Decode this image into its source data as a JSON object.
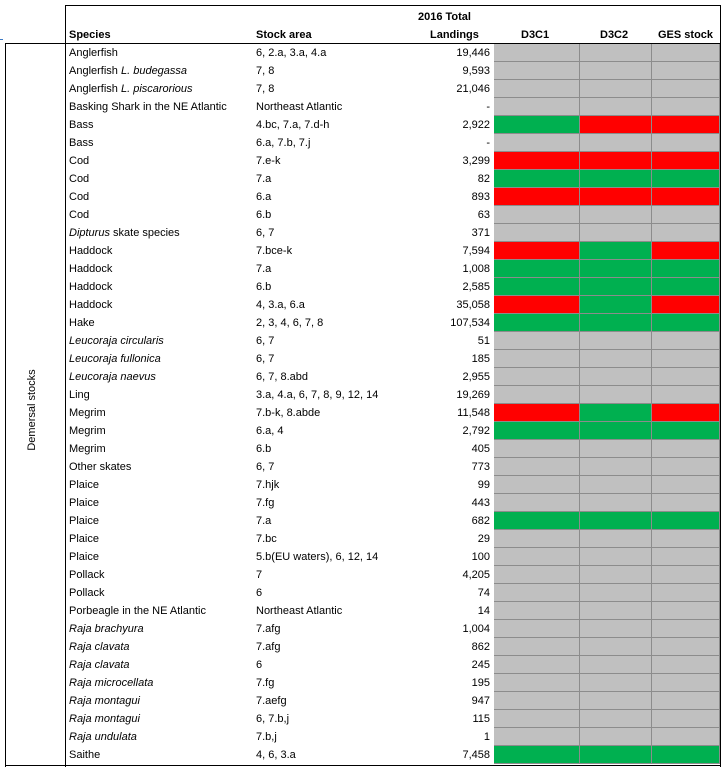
{
  "header": {
    "species": "Species",
    "stock_area": "Stock area",
    "landings_line1": "2016 Total",
    "landings_line2": "Landings",
    "d3c1": "D3C1",
    "d3c2": "D3C2",
    "ges": "GES stock"
  },
  "group_label": "Demersal stocks",
  "colors": {
    "grey": "#c0c0c0",
    "green": "#00b050",
    "red": "#ff0000"
  },
  "rows": [
    {
      "species": "Anglerfish",
      "area": "6, 2.a, 3.a, 4.a",
      "landings": "19,446",
      "d3c1": "grey",
      "d3c2": "grey",
      "ges": "grey"
    },
    {
      "species": "Anglerfish L. budegassa",
      "area": "7, 8",
      "landings": "9,593",
      "d3c1": "grey",
      "d3c2": "grey",
      "ges": "grey"
    },
    {
      "species": "Anglerfish L. piscarorious",
      "area": "7, 8",
      "landings": "21,046",
      "d3c1": "grey",
      "d3c2": "grey",
      "ges": "grey"
    },
    {
      "species": "Basking Shark in the NE Atlantic",
      "area": "Northeast Atlantic",
      "landings": "-",
      "d3c1": "grey",
      "d3c2": "grey",
      "ges": "grey"
    },
    {
      "species": "Bass",
      "area": "4.bc, 7.a, 7.d-h",
      "landings": "2,922",
      "d3c1": "green",
      "d3c2": "red",
      "ges": "red"
    },
    {
      "species": "Bass",
      "area": "6.a, 7.b, 7.j",
      "landings": "-",
      "d3c1": "grey",
      "d3c2": "grey",
      "ges": "grey"
    },
    {
      "species": "Cod",
      "area": "7.e-k",
      "landings": "3,299",
      "d3c1": "red",
      "d3c2": "red",
      "ges": "red"
    },
    {
      "species": "Cod",
      "area": "7.a",
      "landings": "82",
      "d3c1": "green",
      "d3c2": "green",
      "ges": "green"
    },
    {
      "species": "Cod",
      "area": "6.a",
      "landings": "893",
      "d3c1": "red",
      "d3c2": "red",
      "ges": "red"
    },
    {
      "species": "Cod",
      "area": "6.b",
      "landings": "63",
      "d3c1": "grey",
      "d3c2": "grey",
      "ges": "grey"
    },
    {
      "species": "Dipturus skate species",
      "area": "6, 7",
      "landings": "371",
      "d3c1": "grey",
      "d3c2": "grey",
      "ges": "grey"
    },
    {
      "species": "Haddock",
      "area": "7.bce-k",
      "landings": "7,594",
      "d3c1": "red",
      "d3c2": "green",
      "ges": "red"
    },
    {
      "species": "Haddock",
      "area": "7.a",
      "landings": "1,008",
      "d3c1": "green",
      "d3c2": "green",
      "ges": "green"
    },
    {
      "species": "Haddock",
      "area": "6.b",
      "landings": "2,585",
      "d3c1": "green",
      "d3c2": "green",
      "ges": "green"
    },
    {
      "species": "Haddock",
      "area": "4, 3.a, 6.a",
      "landings": "35,058",
      "d3c1": "red",
      "d3c2": "green",
      "ges": "red"
    },
    {
      "species": "Hake",
      "area": "2, 3, 4, 6, 7, 8",
      "landings": "107,534",
      "d3c1": "green",
      "d3c2": "green",
      "ges": "green"
    },
    {
      "species": "Leucoraja circularis",
      "area": "6, 7",
      "landings": "51",
      "d3c1": "grey",
      "d3c2": "grey",
      "ges": "grey"
    },
    {
      "species": "Leucoraja fullonica",
      "area": "6, 7",
      "landings": "185",
      "d3c1": "grey",
      "d3c2": "grey",
      "ges": "grey"
    },
    {
      "species": "Leucoraja naevus",
      "area": "6, 7, 8.abd",
      "landings": "2,955",
      "d3c1": "grey",
      "d3c2": "grey",
      "ges": "grey"
    },
    {
      "species": "Ling",
      "area": "3.a, 4.a, 6, 7, 8, 9, 12, 14",
      "landings": "19,269",
      "d3c1": "grey",
      "d3c2": "grey",
      "ges": "grey"
    },
    {
      "species": "Megrim",
      "area": "7.b-k, 8.abde",
      "landings": "11,548",
      "d3c1": "red",
      "d3c2": "green",
      "ges": "red"
    },
    {
      "species": "Megrim",
      "area": "6.a, 4",
      "landings": "2,792",
      "d3c1": "green",
      "d3c2": "green",
      "ges": "green"
    },
    {
      "species": "Megrim",
      "area": "6.b",
      "landings": "405",
      "d3c1": "grey",
      "d3c2": "grey",
      "ges": "grey"
    },
    {
      "species": "Other skates",
      "area": "6, 7",
      "landings": "773",
      "d3c1": "grey",
      "d3c2": "grey",
      "ges": "grey"
    },
    {
      "species": "Plaice",
      "area": "7.hjk",
      "landings": "99",
      "d3c1": "grey",
      "d3c2": "grey",
      "ges": "grey"
    },
    {
      "species": "Plaice",
      "area": "7.fg",
      "landings": "443",
      "d3c1": "grey",
      "d3c2": "grey",
      "ges": "grey"
    },
    {
      "species": "Plaice",
      "area": "7.a",
      "landings": "682",
      "d3c1": "green",
      "d3c2": "green",
      "ges": "green"
    },
    {
      "species": "Plaice",
      "area": "7.bc",
      "landings": "29",
      "d3c1": "grey",
      "d3c2": "grey",
      "ges": "grey"
    },
    {
      "species": "Plaice",
      "area": "5.b(EU waters), 6, 12, 14",
      "landings": "100",
      "d3c1": "grey",
      "d3c2": "grey",
      "ges": "grey"
    },
    {
      "species": "Pollack",
      "area": "7",
      "landings": "4,205",
      "d3c1": "grey",
      "d3c2": "grey",
      "ges": "grey"
    },
    {
      "species": "Pollack",
      "area": "6",
      "landings": "74",
      "d3c1": "grey",
      "d3c2": "grey",
      "ges": "grey"
    },
    {
      "species": "Porbeagle in the NE Atlantic",
      "area": "Northeast Atlantic",
      "landings": "14",
      "d3c1": "grey",
      "d3c2": "grey",
      "ges": "grey"
    },
    {
      "species": "Raja brachyura",
      "area": "7.afg",
      "landings": "1,004",
      "d3c1": "grey",
      "d3c2": "grey",
      "ges": "grey"
    },
    {
      "species": "Raja clavata",
      "area": "7.afg",
      "landings": "862",
      "d3c1": "grey",
      "d3c2": "grey",
      "ges": "grey"
    },
    {
      "species": "Raja clavata",
      "area": "6",
      "landings": "245",
      "d3c1": "grey",
      "d3c2": "grey",
      "ges": "grey"
    },
    {
      "species": "Raja microcellata",
      "area": "7.fg",
      "landings": "195",
      "d3c1": "grey",
      "d3c2": "grey",
      "ges": "grey"
    },
    {
      "species": "Raja montagui",
      "area": "7.aefg",
      "landings": "947",
      "d3c1": "grey",
      "d3c2": "grey",
      "ges": "grey"
    },
    {
      "species": "Raja montagui",
      "area": "6, 7.b,j",
      "landings": "115",
      "d3c1": "grey",
      "d3c2": "grey",
      "ges": "grey"
    },
    {
      "species": "Raja undulata",
      "area": "7.b,j",
      "landings": "1",
      "d3c1": "grey",
      "d3c2": "grey",
      "ges": "grey"
    },
    {
      "species": "Saithe",
      "area": "4, 6, 3.a",
      "landings": "7,458",
      "d3c1": "green",
      "d3c2": "green",
      "ges": "green"
    }
  ]
}
